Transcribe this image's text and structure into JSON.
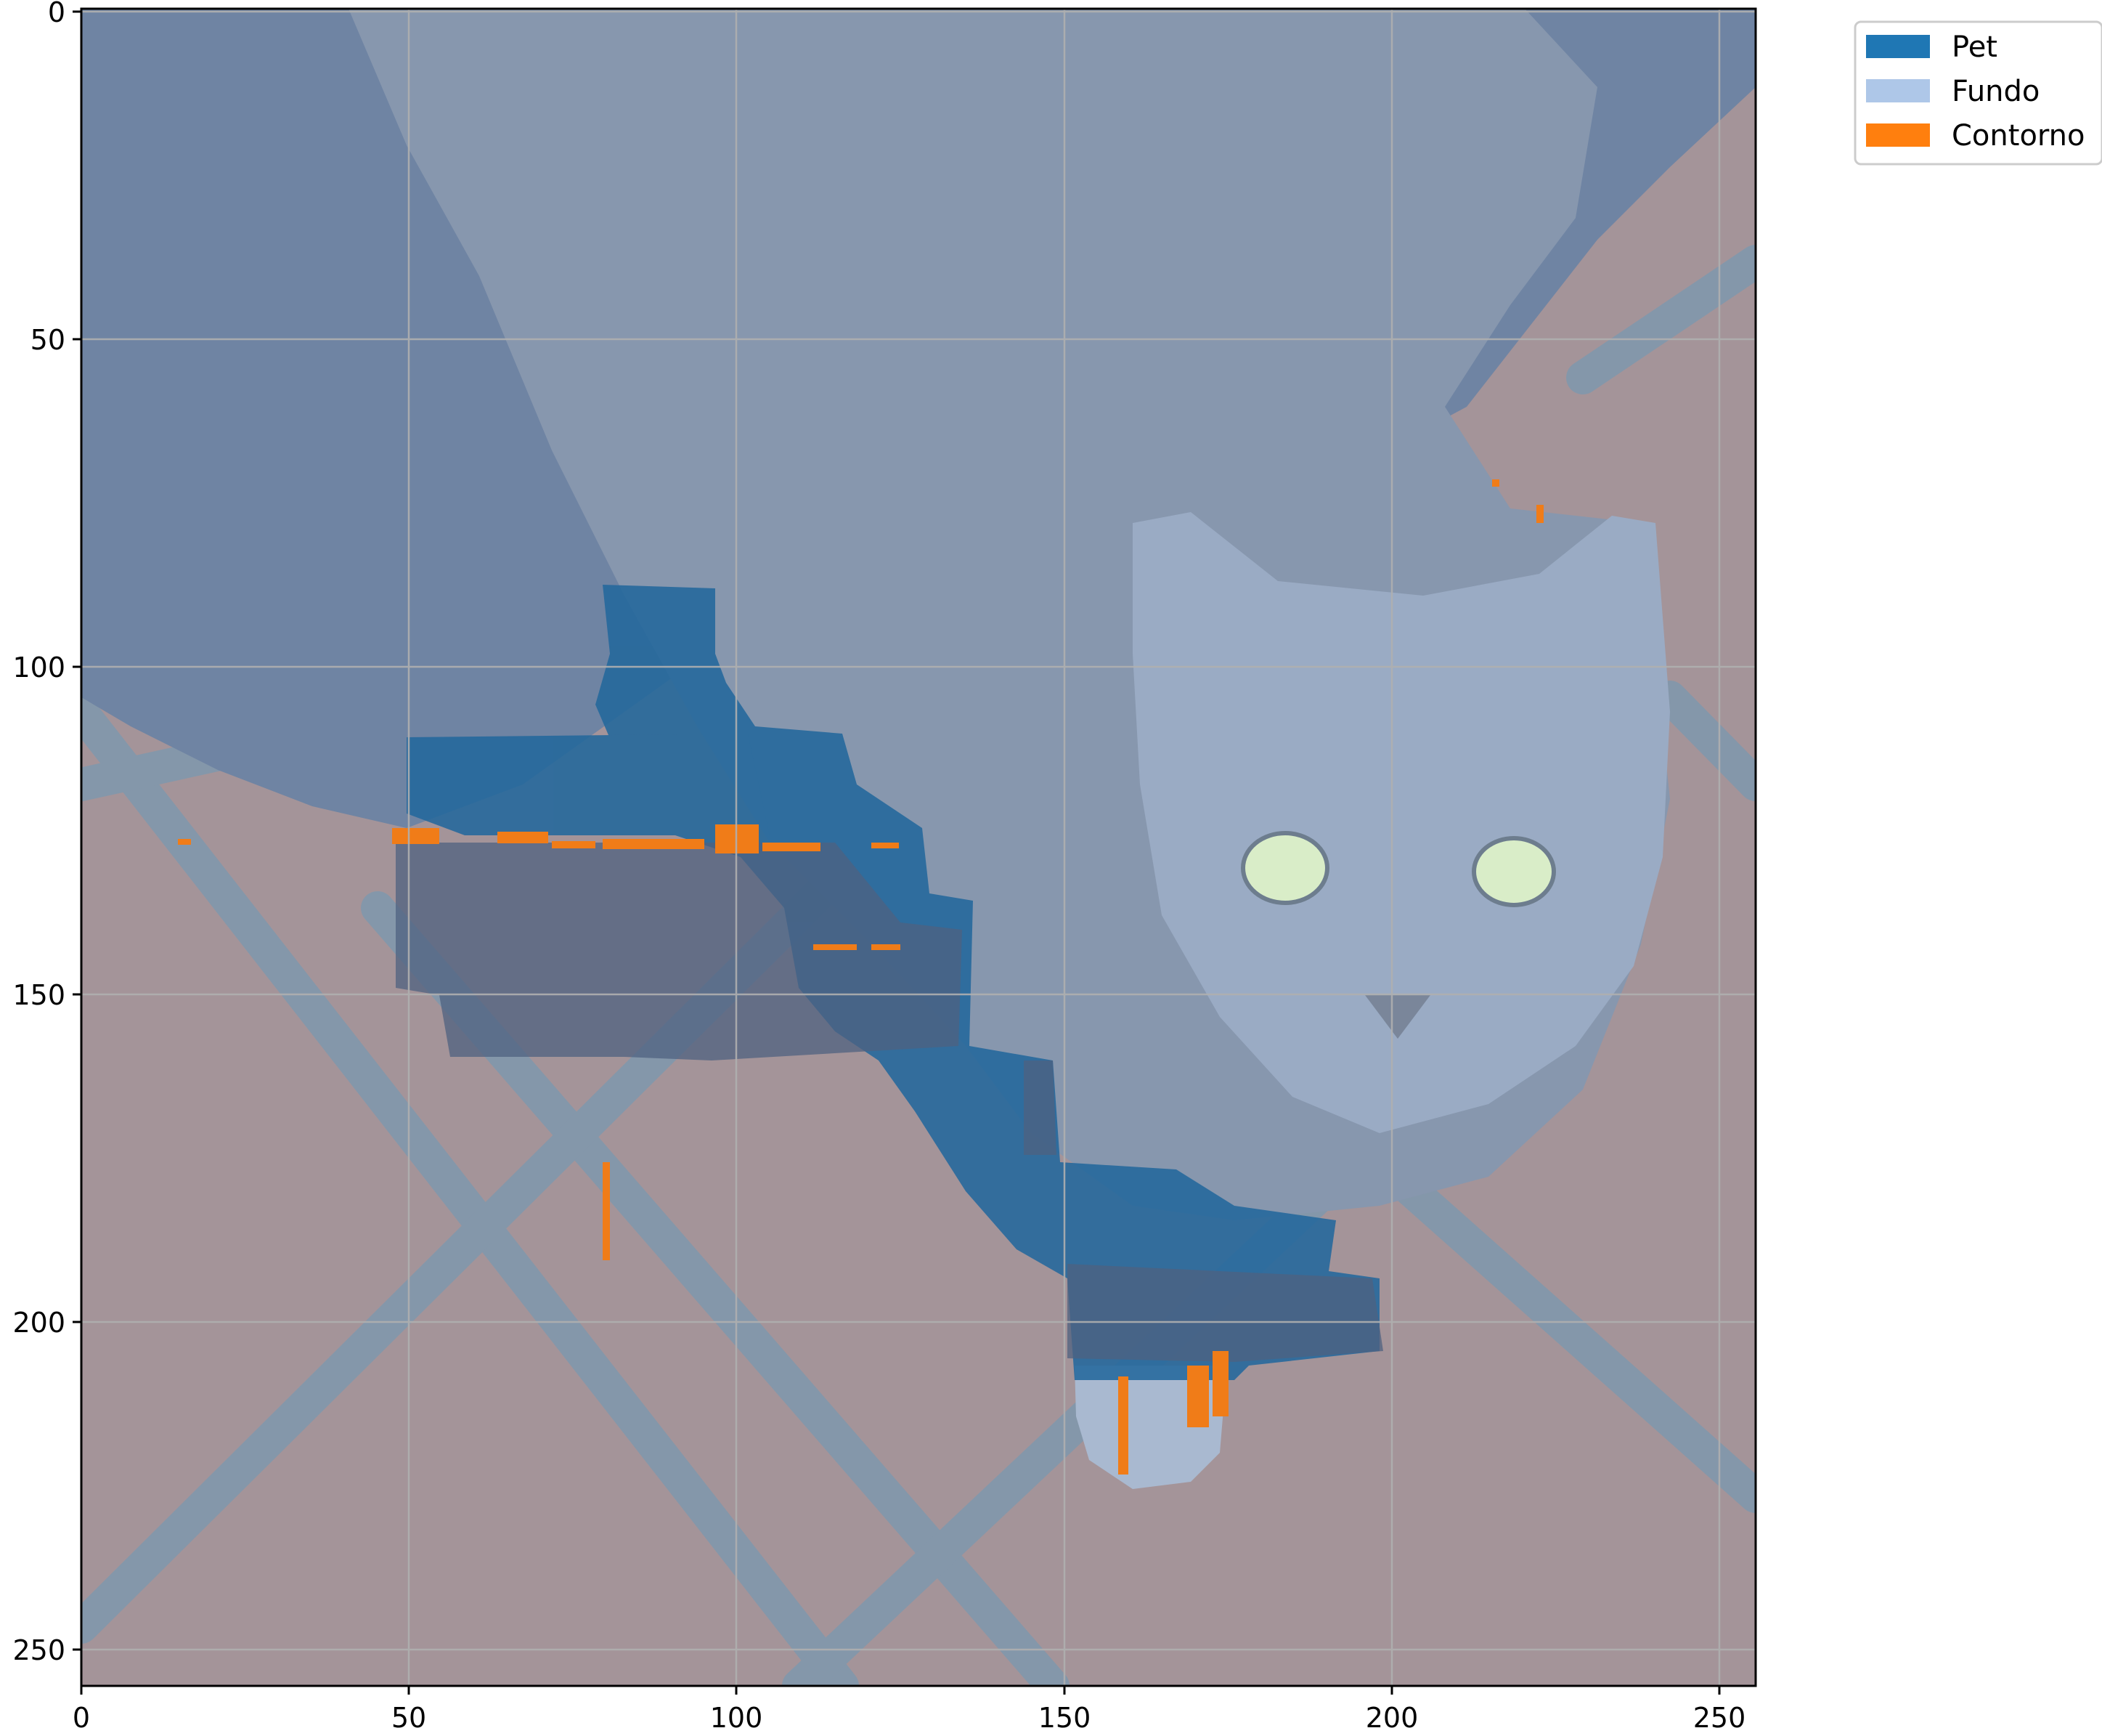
{
  "chart_data": {
    "type": "heatmap",
    "title": "",
    "xlabel": "",
    "ylabel": "",
    "xlim": [
      0,
      255
    ],
    "ylim": [
      255,
      0
    ],
    "x_ticks": [
      "0",
      "50",
      "100",
      "150",
      "200",
      "250"
    ],
    "y_ticks": [
      "0",
      "50",
      "100",
      "150",
      "200",
      "250"
    ],
    "grid": true,
    "legend_position": "outside-top-right",
    "legend": [
      {
        "label": "Pet",
        "color": "#1f77b4"
      },
      {
        "label": "Fundo",
        "color": "#aec7e8"
      },
      {
        "label": "Contorno",
        "color": "#ff7f0e"
      }
    ]
  },
  "image": {
    "subject": "gray cat looking up, with segmentation mask overlay",
    "colors": {
      "background_overlay": "#7f8fa8",
      "floor": "#a59499",
      "floor_lines": "#7f96aa",
      "cat_fur": "#8392a8",
      "cat_face": "#98a9c4",
      "cat_eyes": "#d8ecc8"
    }
  }
}
